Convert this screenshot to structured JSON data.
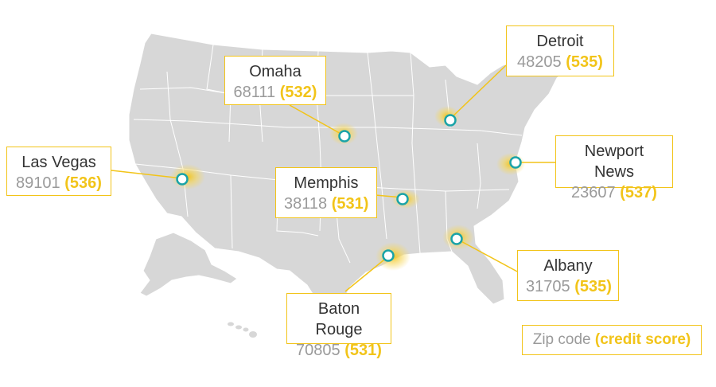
{
  "colors": {
    "land": "#d7d7d7",
    "border": "#ffffff",
    "accent": "#f2c419",
    "marker": "#1aa3a8",
    "zip_text": "#9a9a9a"
  },
  "legend": {
    "zip_label": "Zip code",
    "score_label": "(credit score)"
  },
  "cities": [
    {
      "name": "Las Vegas",
      "zip": "89101",
      "score": "(536)"
    },
    {
      "name": "Omaha",
      "zip": "68111",
      "score": "(532)"
    },
    {
      "name": "Detroit",
      "zip": "48205",
      "score": "(535)"
    },
    {
      "name": "Newport News",
      "zip": "23607",
      "score": "(537)"
    },
    {
      "name": "Memphis",
      "zip": "38118",
      "score": "(531)"
    },
    {
      "name": "Albany",
      "zip": "31705",
      "score": "(535)"
    },
    {
      "name": "Baton Rouge",
      "zip": "70805",
      "score": "(531)"
    }
  ]
}
